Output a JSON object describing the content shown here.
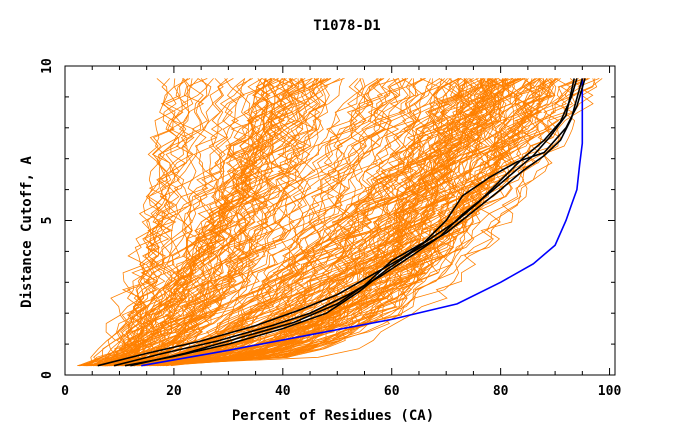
{
  "chart_data": {
    "type": "line",
    "title": "T1078-D1",
    "xlabel": "Percent of Residues (CA)",
    "ylabel": "Distance Cutoff, A",
    "xlim": [
      0,
      101
    ],
    "ylim": [
      0,
      10
    ],
    "xticks": [
      0,
      20,
      40,
      60,
      80,
      100
    ],
    "yticks": [
      0,
      5,
      10
    ],
    "grid": false,
    "legend": "none",
    "colors": {
      "background_models": "#ff8000",
      "highlight_models": "#000000",
      "best_model": "#0000ff"
    },
    "series": [
      {
        "color": "#0000ff",
        "x": [
          14,
          30,
          45,
          60,
          72,
          80,
          86,
          90,
          92,
          93,
          94,
          94.5,
          95,
          95,
          95
        ],
        "y": [
          0.3,
          0.8,
          1.3,
          1.8,
          2.3,
          3.0,
          3.6,
          4.2,
          5.0,
          5.5,
          6.0,
          6.8,
          7.5,
          8.5,
          9.6
        ]
      },
      {
        "color": "#000000",
        "x": [
          6,
          15,
          25,
          35,
          43,
          50,
          56,
          62,
          67,
          72,
          76,
          80,
          84,
          88,
          91,
          93,
          94
        ],
        "y": [
          0.3,
          0.7,
          1.1,
          1.6,
          2.1,
          2.6,
          3.2,
          3.8,
          4.4,
          5.0,
          5.6,
          6.3,
          7.0,
          7.6,
          8.2,
          9.0,
          9.6
        ]
      },
      {
        "color": "#000000",
        "x": [
          9,
          18,
          28,
          38,
          45,
          52,
          58,
          64,
          69,
          73,
          78,
          82,
          86,
          89,
          92,
          93.5
        ],
        "y": [
          0.3,
          0.7,
          1.1,
          1.6,
          2.0,
          2.6,
          3.2,
          3.9,
          4.5,
          5.2,
          5.9,
          6.5,
          7.1,
          7.7,
          8.4,
          9.6
        ]
      },
      {
        "color": "#000000",
        "x": [
          11,
          20,
          30,
          40,
          48,
          54,
          59,
          64,
          70,
          75,
          80,
          84,
          88,
          91,
          93,
          95
        ],
        "y": [
          0.3,
          0.6,
          1.0,
          1.5,
          2.0,
          2.7,
          3.4,
          4.0,
          4.6,
          5.3,
          6.0,
          6.6,
          7.1,
          7.6,
          8.3,
          9.6
        ]
      },
      {
        "color": "#000000",
        "x": [
          12,
          22,
          32,
          42,
          50,
          55,
          60,
          66,
          70,
          73,
          78,
          83,
          88,
          92,
          94,
          95.5
        ],
        "y": [
          0.3,
          0.7,
          1.2,
          1.7,
          2.3,
          2.9,
          3.7,
          4.3,
          5.0,
          5.8,
          6.4,
          6.9,
          7.2,
          8.0,
          8.7,
          9.6
        ]
      }
    ]
  }
}
